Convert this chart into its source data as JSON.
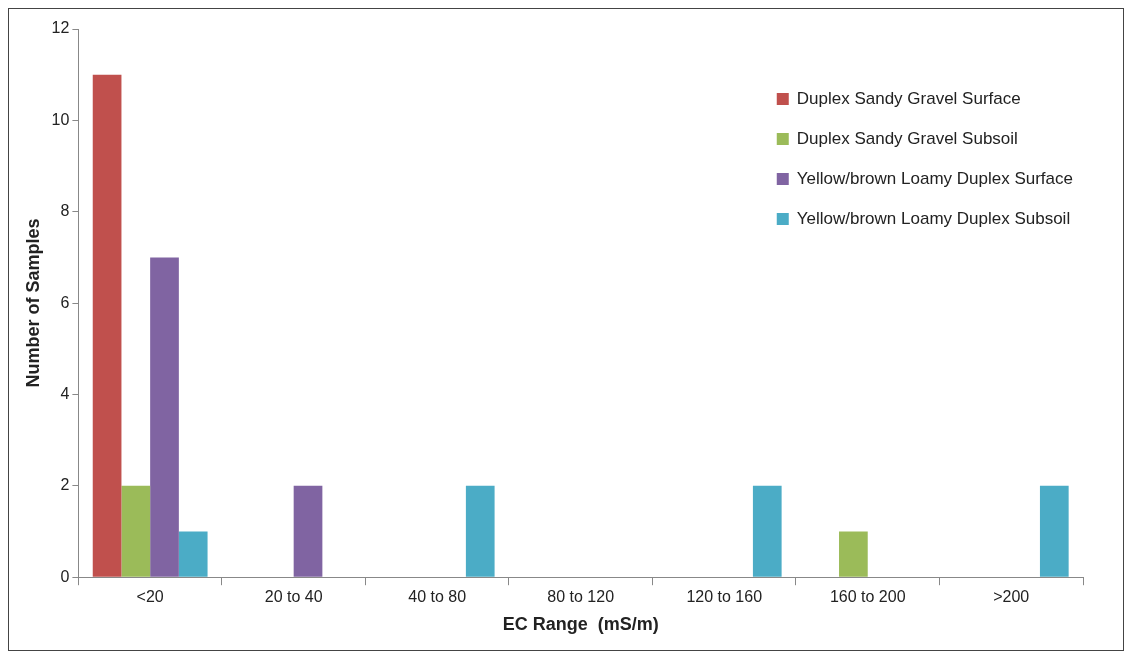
{
  "chart_data": {
    "type": "bar",
    "xlabel": "EC Range  (mS/m)",
    "ylabel": "Number of Samples",
    "categories": [
      "<20",
      "20 to 40",
      "40 to 80",
      "80 to 120",
      "120 to 160",
      "160 to 200",
      ">200"
    ],
    "series": [
      {
        "name": "Duplex Sandy Gravel Surface",
        "color": "#c0504d",
        "values": [
          11,
          0,
          0,
          0,
          0,
          0,
          0
        ]
      },
      {
        "name": "Duplex Sandy Gravel Subsoil",
        "color": "#9bbb59",
        "values": [
          2,
          0,
          0,
          0,
          0,
          1,
          0
        ]
      },
      {
        "name": "Yellow/brown Loamy Duplex Surface",
        "color": "#8064a2",
        "values": [
          7,
          2,
          0,
          0,
          0,
          0,
          0
        ]
      },
      {
        "name": "Yellow/brown Loamy Duplex Subsoil",
        "color": "#4bacc6",
        "values": [
          1,
          0,
          2,
          0,
          2,
          0,
          2
        ]
      }
    ],
    "ylim": [
      0,
      12
    ],
    "yticks": [
      0,
      2,
      4,
      6,
      8,
      10,
      12
    ],
    "grid": false,
    "legend": "top right"
  }
}
